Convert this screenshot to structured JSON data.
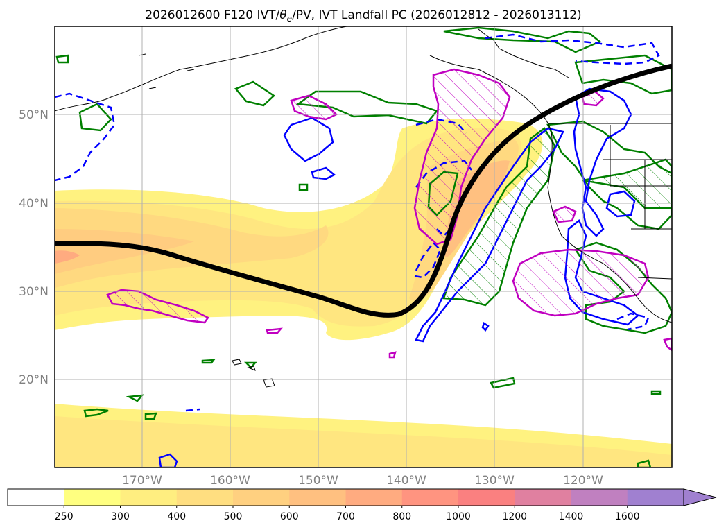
{
  "title": {
    "prefix": "2026012600 F120 IVT/",
    "theta": "θ",
    "theta_sub": "e",
    "suffix": "/PV, IVT Landfall PC (2026012812 - 2026013112)"
  },
  "map": {
    "lat_labels": [
      "20°N",
      "30°N",
      "40°N",
      "50°N"
    ],
    "lon_labels": [
      "170°W",
      "160°W",
      "150°W",
      "140°W",
      "130°W",
      "120°W"
    ],
    "lat_range": [
      10,
      60
    ],
    "lon_range": [
      -180,
      -110
    ],
    "gridlines": true
  },
  "colorbar": {
    "tick_labels": [
      "250",
      "300",
      "400",
      "500",
      "600",
      "700",
      "800",
      "1000",
      "1200",
      "1400",
      "1600"
    ],
    "colors": [
      "#ffffff",
      "#ffff80",
      "#ffee80",
      "#ffde80",
      "#ffd080",
      "#ffc080",
      "#ffab80",
      "#ff9480",
      "#fa8080",
      "#e080a0",
      "#c080c0",
      "#a080d0"
    ],
    "extend": "max"
  },
  "chart_data": {
    "type": "map",
    "variable": "IVT",
    "levels": [
      250,
      300,
      400,
      500,
      600,
      700,
      800,
      1000,
      1200,
      1400,
      1600
    ],
    "overlays": [
      {
        "id": "principal-component-line",
        "color": "#000000"
      },
      {
        "id": "theta-e-contours",
        "color": "#008000"
      },
      {
        "id": "pv-contours",
        "color": "#0000ff"
      },
      {
        "id": "hatched-regions",
        "color": "#c000c0"
      }
    ]
  }
}
